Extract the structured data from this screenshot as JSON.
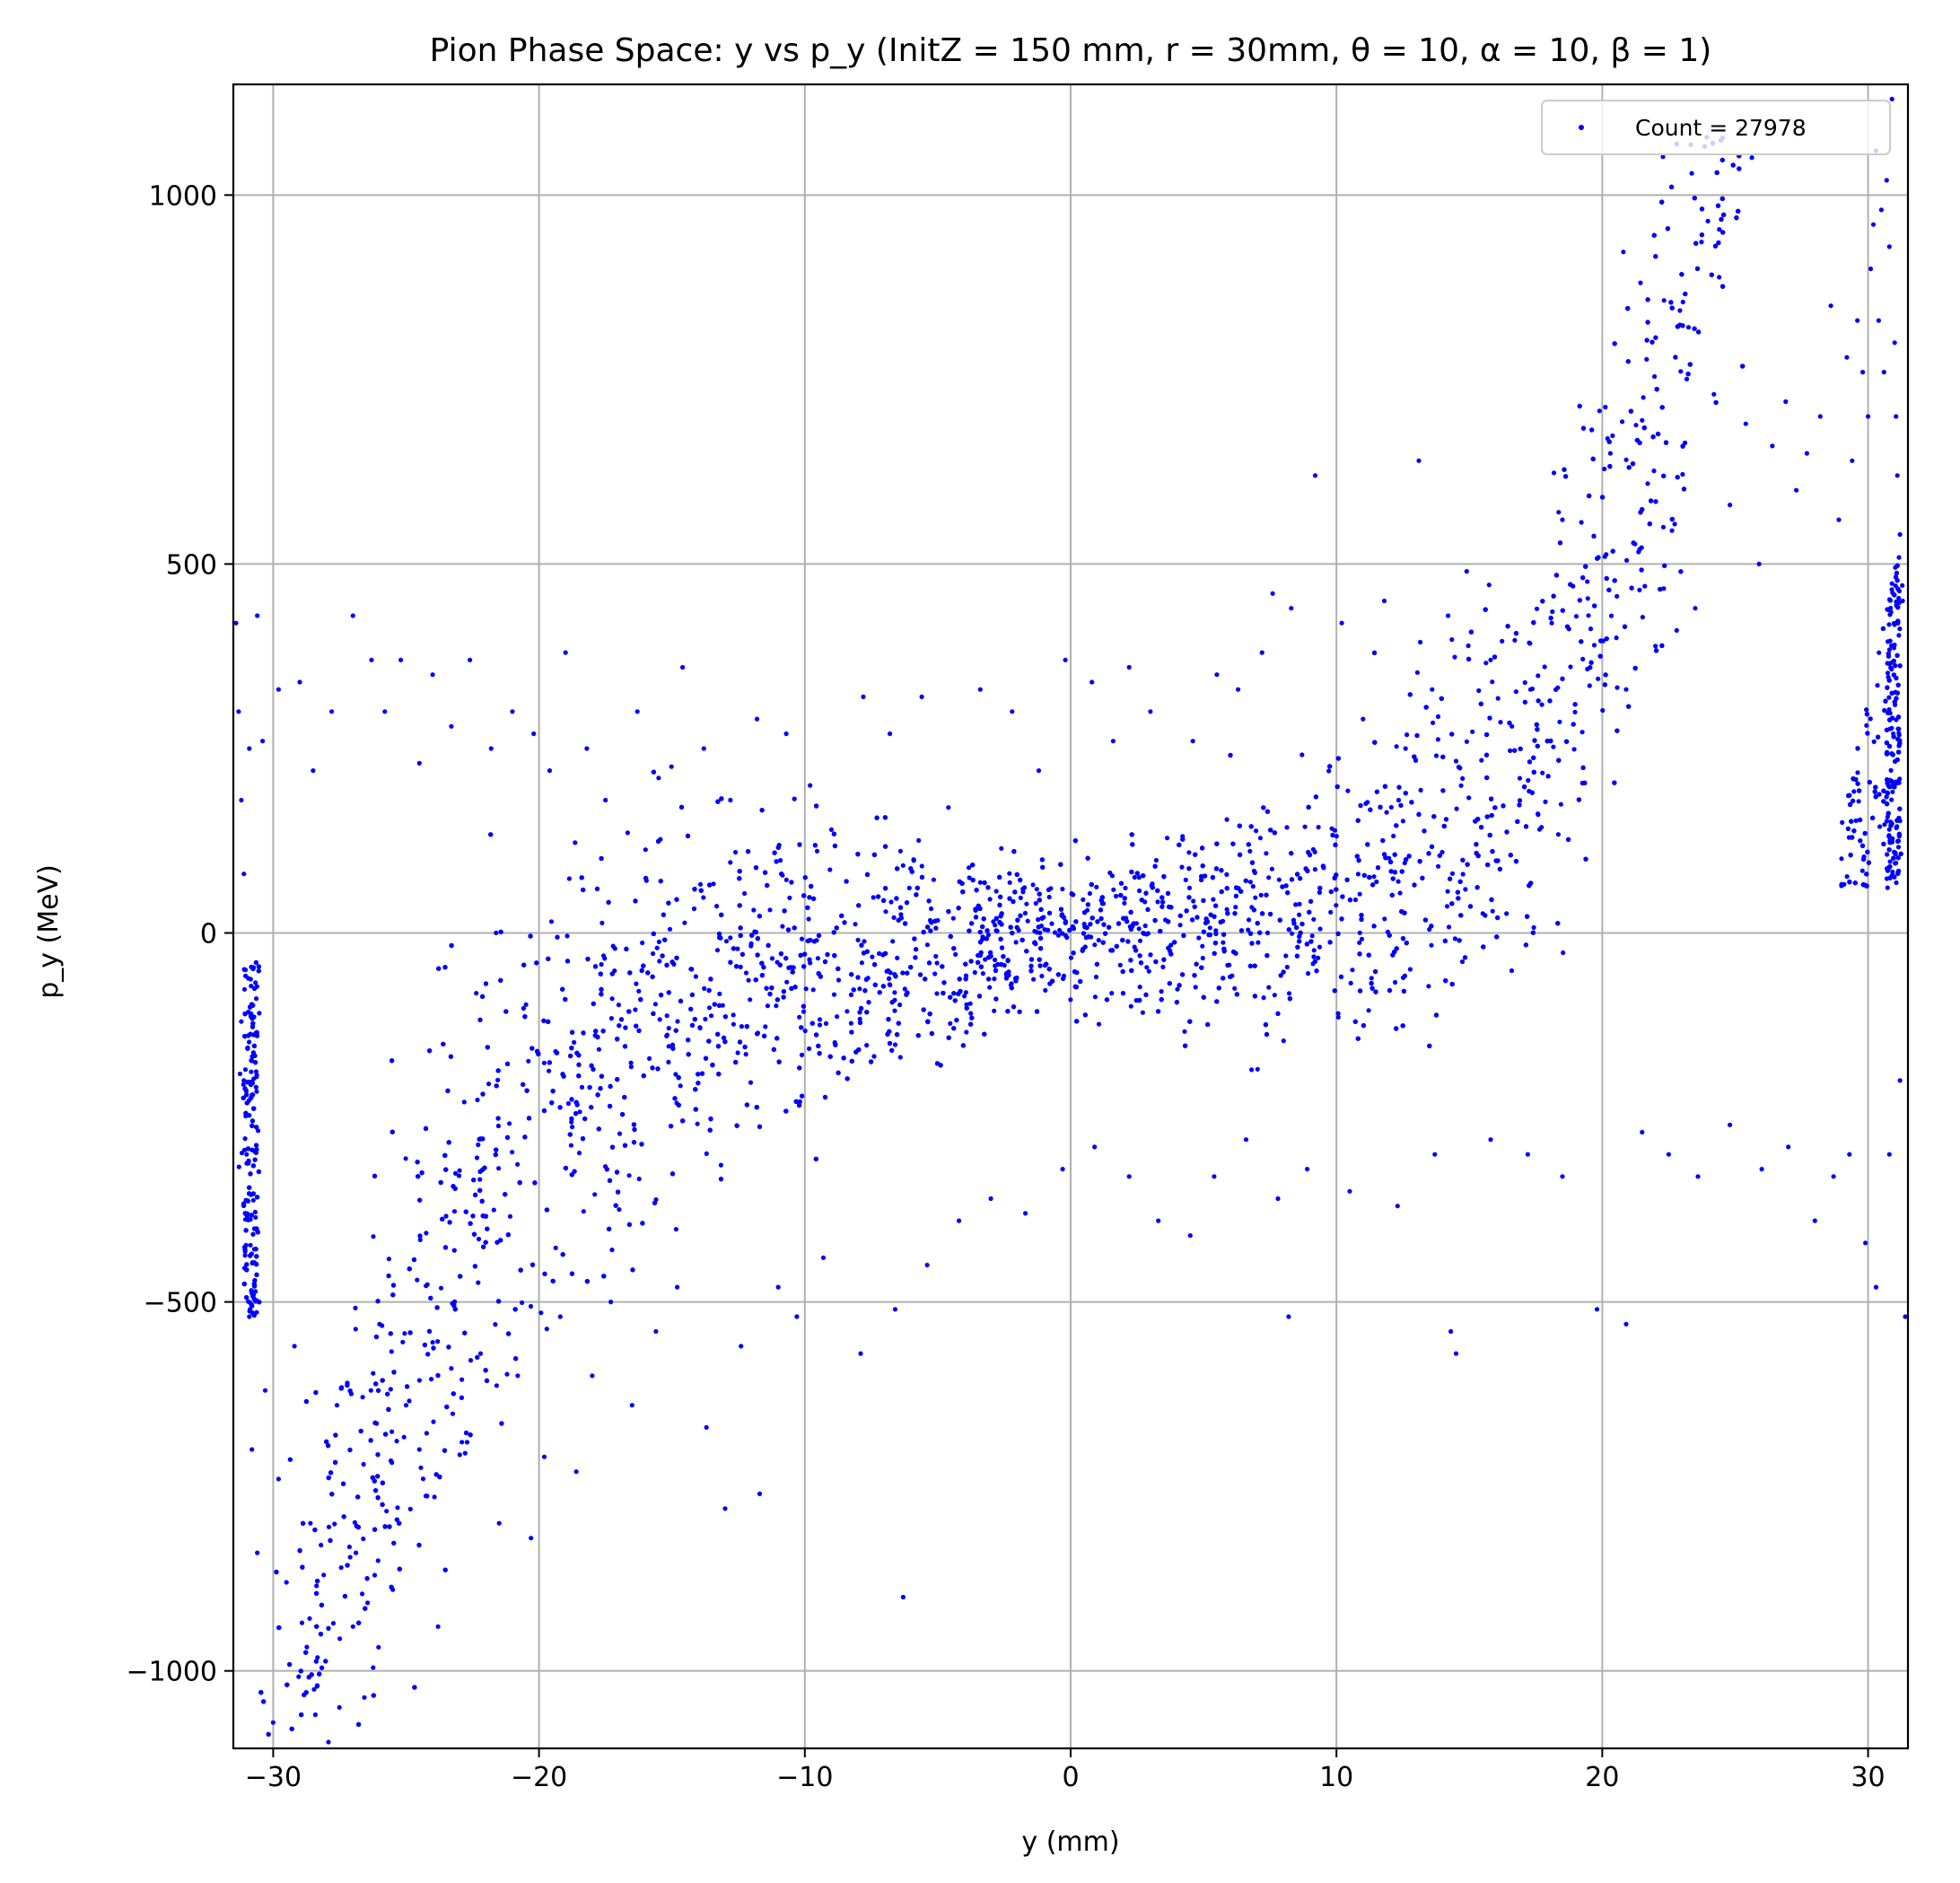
{
  "chart_data": {
    "type": "scatter",
    "title": "Pion Phase Space: y vs p_y (InitZ = 150 mm, r = 30mm, θ = 10, α = 10, β = 1)",
    "xlabel": "y (mm)",
    "ylabel": "p_y (MeV)",
    "xlim": [
      -31.5,
      31.5
    ],
    "ylim": [
      -1105,
      1150
    ],
    "xticks": [
      -30,
      -20,
      -10,
      0,
      10,
      20,
      30
    ],
    "yticks": [
      -1000,
      -500,
      0,
      500,
      1000
    ],
    "xtick_labels": [
      "−30",
      "−20",
      "−10",
      "0",
      "10",
      "20",
      "30"
    ],
    "ytick_labels": [
      "−1000",
      "−500",
      "0",
      "500",
      "1000"
    ],
    "grid": true,
    "legend_position": "top-right",
    "series": [
      {
        "name": "Count = 27978",
        "color": "#0000ff",
        "marker": "dot",
        "points": [
          [
            -31.4,
            420
          ],
          [
            -31.3,
            300
          ],
          [
            -31.2,
            180
          ],
          [
            -31.1,
            80
          ],
          [
            -30.9,
            250
          ],
          [
            -30.6,
            430
          ],
          [
            -30.4,
            260
          ],
          [
            -29.8,
            330
          ],
          [
            -29.0,
            340
          ],
          [
            -28.5,
            220
          ],
          [
            -27.8,
            300
          ],
          [
            -27.0,
            430
          ],
          [
            -26.3,
            370
          ],
          [
            -25.8,
            300
          ],
          [
            -25.2,
            370
          ],
          [
            -24.5,
            230
          ],
          [
            -24.0,
            350
          ],
          [
            -23.3,
            280
          ],
          [
            -22.6,
            370
          ],
          [
            -21.8,
            250
          ],
          [
            -21.0,
            300
          ],
          [
            -20.2,
            270
          ],
          [
            -19.6,
            220
          ],
          [
            -19.0,
            380
          ],
          [
            -18.2,
            250
          ],
          [
            -17.5,
            180
          ],
          [
            -16.3,
            300
          ],
          [
            -15.5,
            210
          ],
          [
            -14.6,
            360
          ],
          [
            -13.8,
            250
          ],
          [
            -12.8,
            180
          ],
          [
            -11.8,
            290
          ],
          [
            -10.7,
            270
          ],
          [
            -9.8,
            200
          ],
          [
            -9.0,
            140
          ],
          [
            -7.8,
            320
          ],
          [
            -6.8,
            270
          ],
          [
            -5.6,
            320
          ],
          [
            -4.6,
            170
          ],
          [
            -3.4,
            330
          ],
          [
            -2.2,
            300
          ],
          [
            -1.2,
            220
          ],
          [
            -0.2,
            370
          ],
          [
            0.8,
            340
          ],
          [
            1.6,
            260
          ],
          [
            2.2,
            360
          ],
          [
            3.0,
            300
          ],
          [
            4.6,
            260
          ],
          [
            5.5,
            350
          ],
          [
            6.3,
            330
          ],
          [
            7.2,
            380
          ],
          [
            7.6,
            460
          ],
          [
            8.3,
            440
          ],
          [
            9.2,
            620
          ],
          [
            10.2,
            420
          ],
          [
            11.0,
            290
          ],
          [
            11.8,
            450
          ],
          [
            12.6,
            250
          ],
          [
            13.1,
            640
          ],
          [
            13.6,
            330
          ],
          [
            14.2,
            430
          ],
          [
            14.9,
            490
          ],
          [
            15.8,
            370
          ],
          [
            16.6,
            280
          ],
          [
            17.3,
            330
          ],
          [
            18.1,
            420
          ],
          [
            18.5,
            560
          ],
          [
            18.9,
            470
          ],
          [
            19.7,
            390
          ],
          [
            20.1,
            510
          ],
          [
            20.2,
            670
          ],
          [
            20.9,
            330
          ],
          [
            21.6,
            470
          ],
          [
            22.3,
            550
          ],
          [
            22.8,
            410
          ],
          [
            23.5,
            440
          ],
          [
            24.2,
            730
          ],
          [
            24.8,
            580
          ],
          [
            25.4,
            690
          ],
          [
            25.9,
            500
          ],
          [
            26.4,
            660
          ],
          [
            26.9,
            720
          ],
          [
            27.3,
            600
          ],
          [
            27.7,
            650
          ],
          [
            28.2,
            700
          ],
          [
            28.6,
            850
          ],
          [
            28.9,
            560
          ],
          [
            29.2,
            780
          ],
          [
            29.4,
            640
          ],
          [
            29.6,
            830
          ],
          [
            29.8,
            760
          ],
          [
            30.0,
            700
          ],
          [
            30.1,
            900
          ],
          [
            30.2,
            960
          ],
          [
            30.3,
            1060
          ],
          [
            30.4,
            830
          ],
          [
            30.5,
            980
          ],
          [
            30.6,
            760
          ],
          [
            30.7,
            1020
          ],
          [
            30.8,
            930
          ],
          [
            30.9,
            1130
          ],
          [
            31.0,
            800
          ],
          [
            31.05,
            700
          ],
          [
            31.1,
            620
          ],
          [
            31.2,
            540
          ],
          [
            31.3,
            450
          ],
          [
            -31.2,
            -120
          ],
          [
            -31.0,
            -300
          ],
          [
            -30.9,
            -520
          ],
          [
            -30.8,
            -700
          ],
          [
            -30.6,
            -840
          ],
          [
            -30.3,
            -620
          ],
          [
            -30.0,
            -1070
          ],
          [
            -29.8,
            -740
          ],
          [
            -29.5,
            -880
          ],
          [
            -29.2,
            -560
          ],
          [
            -28.6,
            -800
          ],
          [
            -28.1,
            -870
          ],
          [
            -27.6,
            -640
          ],
          [
            -27.0,
            -940
          ],
          [
            -26.6,
            -720
          ],
          [
            -26.0,
            -530
          ],
          [
            -25.5,
            -890
          ],
          [
            -25.0,
            -640
          ],
          [
            -24.5,
            -700
          ],
          [
            -23.8,
            -940
          ],
          [
            -23.3,
            -590
          ],
          [
            -22.9,
            -690
          ],
          [
            -22.2,
            -570
          ],
          [
            -21.5,
            -800
          ],
          [
            -20.8,
            -600
          ],
          [
            -20.3,
            -820
          ],
          [
            -19.8,
            -710
          ],
          [
            -19.2,
            -520
          ],
          [
            -18.6,
            -730
          ],
          [
            -18.0,
            -600
          ],
          [
            -17.3,
            -500
          ],
          [
            -16.5,
            -640
          ],
          [
            -15.6,
            -540
          ],
          [
            -14.8,
            -480
          ],
          [
            -13.7,
            -670
          ],
          [
            -13.0,
            -780
          ],
          [
            -12.4,
            -560
          ],
          [
            -11.7,
            -760
          ],
          [
            -11.0,
            -480
          ],
          [
            -10.3,
            -520
          ],
          [
            -9.3,
            -440
          ],
          [
            -7.9,
            -570
          ],
          [
            -6.6,
            -510
          ],
          [
            -6.3,
            -900
          ],
          [
            -5.4,
            -450
          ],
          [
            -4.2,
            -390
          ],
          [
            -3.0,
            -360
          ],
          [
            -1.7,
            -380
          ],
          [
            -0.3,
            -320
          ],
          [
            0.9,
            -290
          ],
          [
            2.2,
            -330
          ],
          [
            3.3,
            -390
          ],
          [
            4.5,
            -410
          ],
          [
            5.4,
            -330
          ],
          [
            6.6,
            -280
          ],
          [
            7.8,
            -360
          ],
          [
            8.2,
            -520
          ],
          [
            8.9,
            -320
          ],
          [
            10.5,
            -350
          ],
          [
            12.3,
            -370
          ],
          [
            13.7,
            -300
          ],
          [
            14.3,
            -540
          ],
          [
            14.5,
            -570
          ],
          [
            15.8,
            -280
          ],
          [
            17.2,
            -300
          ],
          [
            18.5,
            -330
          ],
          [
            19.8,
            -510
          ],
          [
            20.9,
            -530
          ],
          [
            21.5,
            -270
          ],
          [
            22.5,
            -300
          ],
          [
            23.6,
            -330
          ],
          [
            24.8,
            -260
          ],
          [
            26.0,
            -320
          ],
          [
            27.0,
            -290
          ],
          [
            28.0,
            -390
          ],
          [
            28.7,
            -330
          ],
          [
            29.3,
            -300
          ],
          [
            29.9,
            -420
          ],
          [
            30.3,
            -480
          ],
          [
            30.8,
            -300
          ],
          [
            31.2,
            -200
          ],
          [
            31.4,
            -520
          ]
        ]
      }
    ]
  }
}
